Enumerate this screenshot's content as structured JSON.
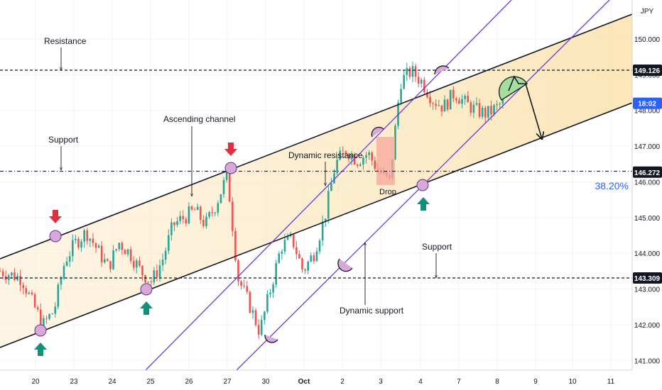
{
  "chart_data": {
    "type": "candlestick",
    "currency": "JPY",
    "x_ticks": [
      "20",
      "23",
      "24",
      "25",
      "26",
      "27",
      "30",
      "Oct",
      "2",
      "3",
      "4",
      "7",
      "8",
      "9",
      "10",
      "11"
    ],
    "y_ticks": [
      "141.000",
      "142.000",
      "143.000",
      "144.000",
      "145.000",
      "146.000",
      "147.000",
      "148.000",
      "149.000",
      "150.000"
    ],
    "ylim": [
      140.5,
      151
    ],
    "price_tags": [
      {
        "price": 149.126,
        "label": "149.126",
        "style": "dark"
      },
      {
        "price": 148.2,
        "label": "18:02",
        "style": "blue"
      },
      {
        "price": 146.272,
        "label": "146.272",
        "style": "dark"
      },
      {
        "price": 143.309,
        "label": "143.309",
        "style": "dark"
      }
    ],
    "horizontal_levels": [
      {
        "price": 149.126,
        "label": "Resistance"
      },
      {
        "price": 146.272,
        "label": "Support"
      },
      {
        "price": 143.309,
        "label": "Support"
      }
    ],
    "fib_label": "38.20%",
    "annotations": {
      "ascending_channel": "Ascending channel",
      "dynamic_resistance": "Dynamic resistance",
      "dynamic_support": "Dynamic support",
      "drop": "Drop",
      "resistance": "Resistance",
      "support_left": "Support",
      "support_right": "Support"
    },
    "series": [
      {
        "name": "close",
        "anchors": [
          [
            0,
            143.5
          ],
          [
            2,
            143.3
          ],
          [
            3,
            142.6
          ],
          [
            4,
            142.0
          ],
          [
            5,
            142.4
          ],
          [
            6,
            143.8
          ],
          [
            7,
            144.3
          ],
          [
            8,
            144.6
          ],
          [
            9,
            144.1
          ],
          [
            10,
            143.6
          ],
          [
            11,
            144.3
          ],
          [
            12,
            144.0
          ],
          [
            13,
            143.5
          ],
          [
            14,
            143.2
          ],
          [
            15,
            143.8
          ],
          [
            16,
            144.8
          ],
          [
            17,
            145.0
          ],
          [
            18,
            145.2
          ],
          [
            19,
            144.8
          ],
          [
            20,
            145.4
          ],
          [
            21,
            146.2
          ],
          [
            22,
            143.3
          ],
          [
            23,
            142.6
          ],
          [
            24,
            141.8
          ],
          [
            25,
            143.0
          ],
          [
            26,
            144.2
          ],
          [
            27,
            144.4
          ],
          [
            28,
            143.5
          ],
          [
            29,
            144.0
          ],
          [
            30,
            145.0
          ],
          [
            31,
            146.5
          ],
          [
            32,
            146.9
          ],
          [
            33,
            146.6
          ],
          [
            34,
            146.8
          ],
          [
            35,
            146.3
          ],
          [
            36,
            146.0
          ],
          [
            37,
            148.8
          ],
          [
            38,
            149.1
          ],
          [
            39,
            148.8
          ],
          [
            40,
            148.3
          ],
          [
            41,
            148.1
          ],
          [
            42,
            148.5
          ],
          [
            43,
            148.2
          ],
          [
            44,
            148.0
          ],
          [
            45,
            147.9
          ],
          [
            46,
            148.1
          ],
          [
            47,
            148.4
          ]
        ]
      }
    ]
  }
}
